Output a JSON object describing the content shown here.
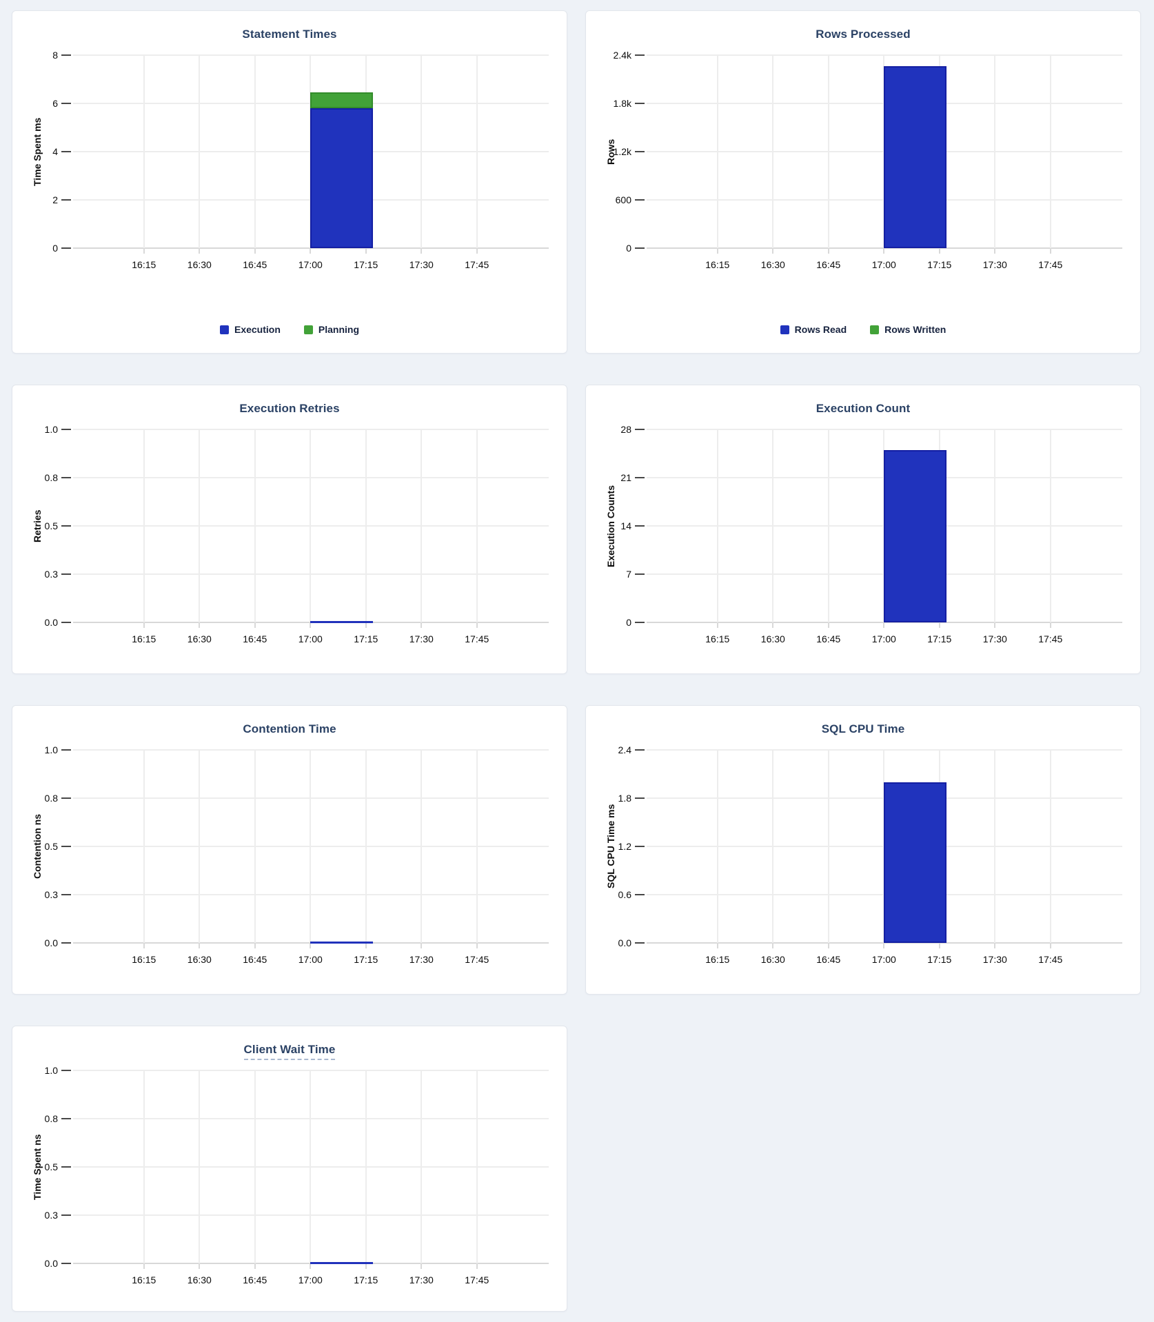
{
  "page": {
    "background": "#eef2f7",
    "card_background": "#ffffff",
    "card_border": "#e2e6ec",
    "title_color": "#2b4265",
    "bar_blue": "#2033bd",
    "bar_green": "#42a238",
    "zero_line_color": "#2132bb"
  },
  "chart_data": [
    {
      "type": "bar",
      "stacked": true,
      "title": "Statement Times",
      "title_underline": false,
      "ylabel": "Time Spent ms",
      "ylim": [
        0,
        8
      ],
      "yticks": [
        "8",
        "6",
        "4",
        "2",
        "0"
      ],
      "xticks": [
        "16:15",
        "16:30",
        "16:45",
        "17:00",
        "17:15",
        "17:30",
        "17:45"
      ],
      "x_window": {
        "start": "17:00",
        "end": "17:17"
      },
      "grid": true,
      "legend_position": "bottom",
      "series": [
        {
          "name": "Execution",
          "value": 5.8,
          "color": "#2033bd",
          "stroke": "#141fa3"
        },
        {
          "name": "Planning",
          "value": 0.65,
          "color": "#42a238",
          "stroke": "#338c2b"
        }
      ],
      "legend": [
        "Execution",
        "Planning"
      ],
      "zero_line": false
    },
    {
      "type": "bar",
      "stacked": true,
      "title": "Rows Processed",
      "title_underline": false,
      "ylabel": "Rows",
      "ylim": [
        0,
        2400
      ],
      "yticks": [
        "2.4k",
        "1.8k",
        "1.2k",
        "600",
        "0"
      ],
      "xticks": [
        "16:15",
        "16:30",
        "16:45",
        "17:00",
        "17:15",
        "17:30",
        "17:45"
      ],
      "x_window": {
        "start": "17:00",
        "end": "17:17"
      },
      "grid": true,
      "legend_position": "bottom",
      "series": [
        {
          "name": "Rows Read",
          "value": 2260,
          "color": "#2033bd",
          "stroke": "#141fa3"
        },
        {
          "name": "Rows Written",
          "value": 0,
          "color": "#42a238",
          "stroke": "#338c2b"
        }
      ],
      "legend": [
        "Rows Read",
        "Rows Written"
      ],
      "zero_line": false
    },
    {
      "type": "line",
      "stacked": false,
      "title": "Execution Retries",
      "title_underline": false,
      "ylabel": "Retries",
      "ylim": [
        0,
        1
      ],
      "yticks": [
        "1.0",
        "0.8",
        "0.5",
        "0.3",
        "0.0"
      ],
      "xticks": [
        "16:15",
        "16:30",
        "16:45",
        "17:00",
        "17:15",
        "17:30",
        "17:45"
      ],
      "x_window": {
        "start": "17:00",
        "end": "17:17"
      },
      "grid": true,
      "series": [
        {
          "name": "Retries",
          "value": 0,
          "color": "#2132bb",
          "stroke": "#2132bb"
        }
      ],
      "legend": [],
      "zero_line": true
    },
    {
      "type": "bar",
      "stacked": false,
      "title": "Execution Count",
      "title_underline": false,
      "ylabel": "Execution Counts",
      "ylim": [
        0,
        28
      ],
      "yticks": [
        "28",
        "21",
        "14",
        "7",
        "0"
      ],
      "xticks": [
        "16:15",
        "16:30",
        "16:45",
        "17:00",
        "17:15",
        "17:30",
        "17:45"
      ],
      "x_window": {
        "start": "17:00",
        "end": "17:17"
      },
      "grid": true,
      "series": [
        {
          "name": "Execution Count",
          "value": 25,
          "color": "#2033bd",
          "stroke": "#141fa3"
        }
      ],
      "legend": [],
      "zero_line": false
    },
    {
      "type": "line",
      "stacked": false,
      "title": "Contention Time",
      "title_underline": false,
      "ylabel": "Contention ns",
      "ylim": [
        0,
        1
      ],
      "yticks": [
        "1.0",
        "0.8",
        "0.5",
        "0.3",
        "0.0"
      ],
      "xticks": [
        "16:15",
        "16:30",
        "16:45",
        "17:00",
        "17:15",
        "17:30",
        "17:45"
      ],
      "x_window": {
        "start": "17:00",
        "end": "17:17"
      },
      "grid": true,
      "series": [
        {
          "name": "Contention Time",
          "value": 0,
          "color": "#2132bb",
          "stroke": "#2132bb"
        }
      ],
      "legend": [],
      "zero_line": true
    },
    {
      "type": "bar",
      "stacked": false,
      "title": "SQL CPU Time",
      "title_underline": false,
      "ylabel": "SQL CPU Time ms",
      "ylim": [
        0,
        2.4
      ],
      "yticks": [
        "2.4",
        "1.8",
        "1.2",
        "0.6",
        "0.0"
      ],
      "xticks": [
        "16:15",
        "16:30",
        "16:45",
        "17:00",
        "17:15",
        "17:30",
        "17:45"
      ],
      "x_window": {
        "start": "17:00",
        "end": "17:17"
      },
      "grid": true,
      "series": [
        {
          "name": "SQL CPU Time",
          "value": 2.0,
          "color": "#2033bd",
          "stroke": "#141fa3"
        }
      ],
      "legend": [],
      "zero_line": false
    },
    {
      "type": "line",
      "stacked": false,
      "title": "Client Wait Time",
      "title_underline": true,
      "ylabel": "Time Spent ns",
      "ylim": [
        0,
        1
      ],
      "yticks": [
        "1.0",
        "0.8",
        "0.5",
        "0.3",
        "0.0"
      ],
      "xticks": [
        "16:15",
        "16:30",
        "16:45",
        "17:00",
        "17:15",
        "17:30",
        "17:45"
      ],
      "x_window": {
        "start": "17:00",
        "end": "17:17"
      },
      "grid": true,
      "series": [
        {
          "name": "Client Wait Time",
          "value": 0,
          "color": "#2132bb",
          "stroke": "#2132bb"
        }
      ],
      "legend": [],
      "zero_line": true
    }
  ]
}
